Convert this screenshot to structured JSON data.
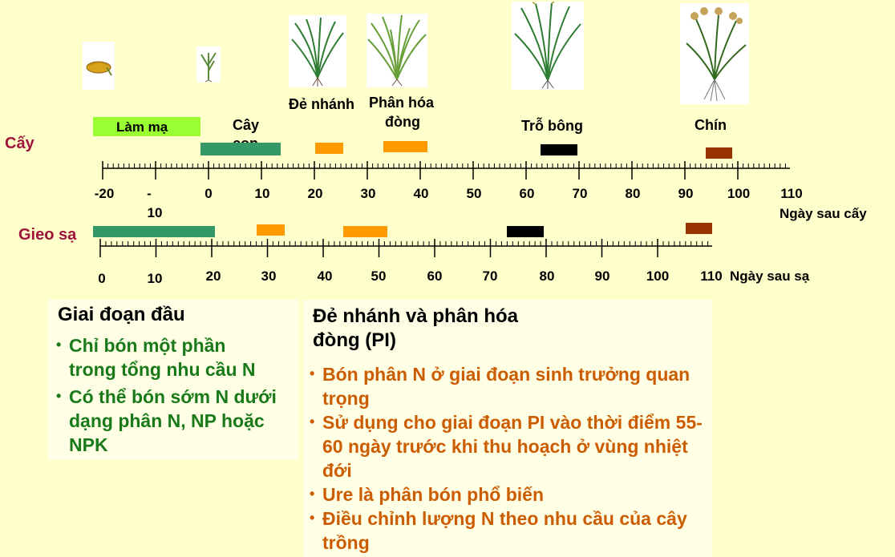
{
  "rows": {
    "transplant_label": "Cấy",
    "direct_seed_label": "Gieo sạ"
  },
  "stages": {
    "nursery": "Làm mạ",
    "seedling": [
      "Cây",
      "con"
    ],
    "tillering": "Đẻ nhánh",
    "panicle_init": [
      "Phân hóa",
      "đòng"
    ],
    "heading": "Trỗ bông",
    "maturity": "Chín"
  },
  "axis_transplant": {
    "ticks": [
      "-20",
      "-",
      "0",
      "10",
      "20",
      "30",
      "40",
      "50",
      "60",
      "70",
      "80",
      "90",
      "100",
      "110"
    ],
    "tick_extra": "10",
    "unit": "Ngày sau cấy"
  },
  "axis_direct": {
    "ticks": [
      "0",
      "10",
      "20",
      "30",
      "40",
      "50",
      "60",
      "70",
      "80",
      "90",
      "100",
      "110"
    ],
    "unit": "Ngày sau sạ"
  },
  "colors": {
    "nursery": "#99FF33",
    "seedling": "#339966",
    "tillering": "#FF9900",
    "heading": "#000000",
    "maturity": "#993300",
    "row_label": "#A0143C",
    "green_text": "#1A7A1A",
    "orange_text": "#CC5C00"
  },
  "panel_left": {
    "title": "Giai đoạn đầu",
    "items": [
      "Chỉ bón một phần trong tổng nhu cầu N",
      "Có thể bón sớm N dưới dạng phân N, NP hoặc NPK"
    ]
  },
  "panel_right": {
    "title_line1": "Đẻ nhánh và phân hóa",
    "title_line2": "đòng (PI)",
    "items": [
      "Bón phân N ở giai đoạn sinh trưởng quan trọng",
      "Sử dụng cho giai đoạn PI vào thời điểm 55-60 ngày trước khi thu hoạch ở vùng nhiệt đới",
      "Ure là phân bón phổ biến",
      "Điều chỉnh lượng N theo nhu cầu của cây trồng"
    ]
  }
}
